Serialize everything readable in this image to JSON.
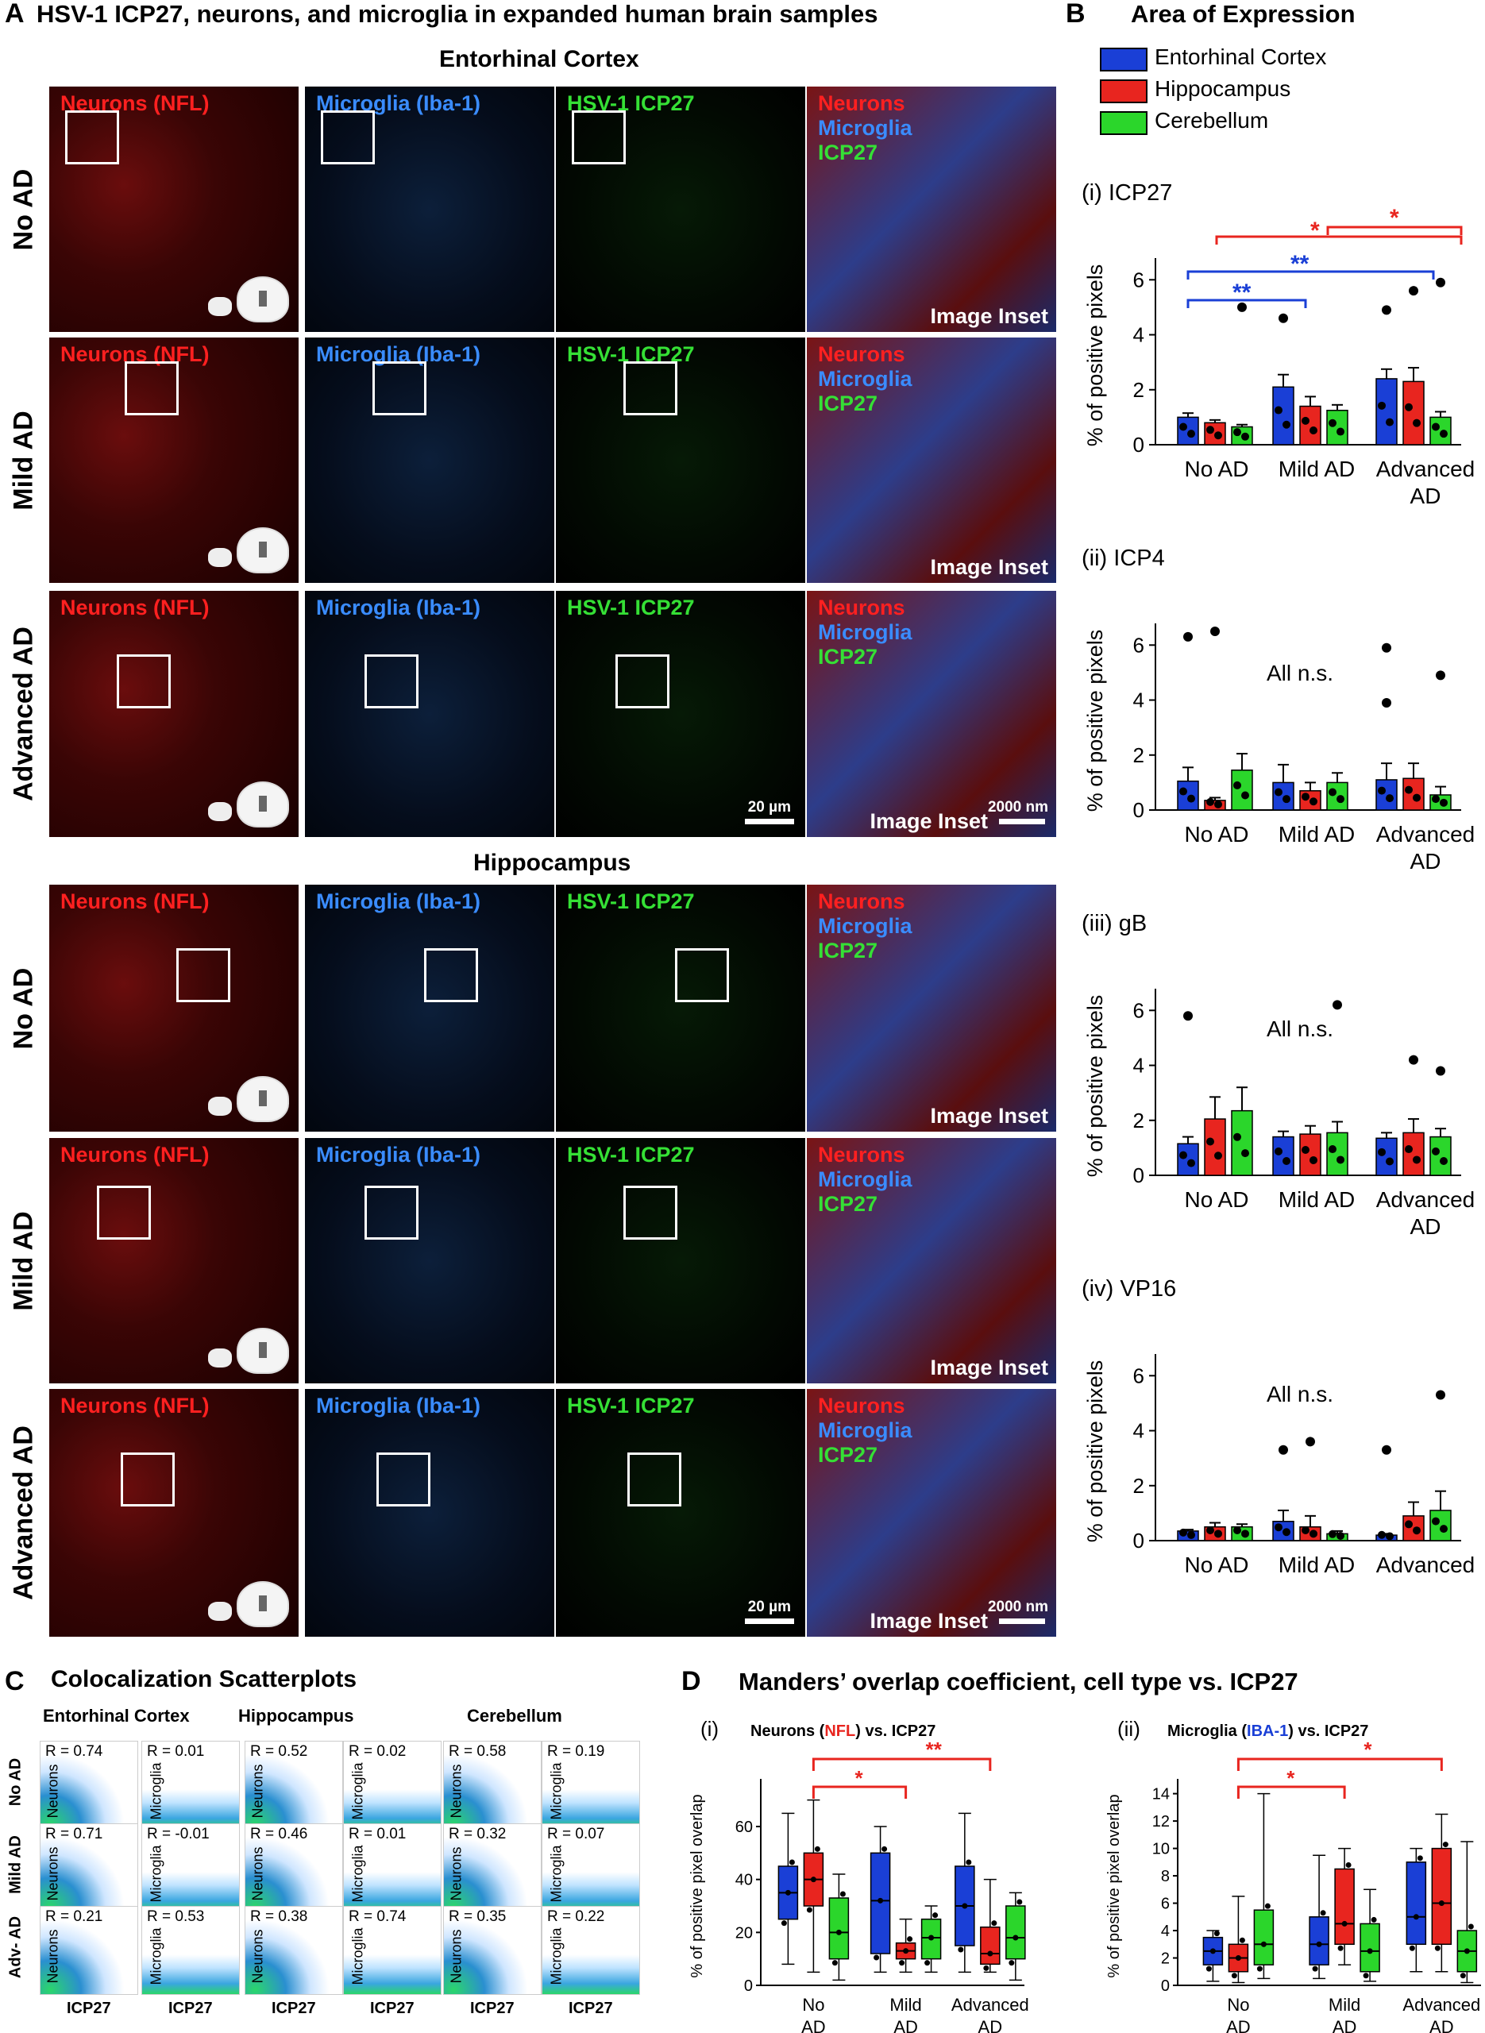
{
  "panel_A": {
    "letter": "A",
    "title": "HSV-1 ICP27, neurons, and microglia in expanded human brain samples",
    "section_ec": "Entorhinal Cortex",
    "section_hip": "Hippocampus",
    "rows": [
      "No AD",
      "Mild AD",
      "Advanced AD"
    ],
    "channels": {
      "neurons": "Neurons (NFL)",
      "microglia": "Microglia (Iba-1)",
      "icp27": "HSV-1 ICP27"
    },
    "merge_labels": [
      "Neurons",
      "Microglia",
      "ICP27"
    ],
    "inset_label": "Image Inset",
    "scale_20": "20 µm",
    "scale_2000": "2000 nm"
  },
  "panel_B": {
    "letter": "B",
    "title": "Area of Expression",
    "legend": [
      "Entorhinal Cortex",
      "Hippocampus",
      "Cerebellum"
    ],
    "colors": {
      "ec": "#1a3fd6",
      "hip": "#e8251f",
      "cb": "#2bd62b"
    },
    "ylabel": "% of positive pixels",
    "ns_label": "All n.s.",
    "groups": [
      "No AD",
      "Mild AD",
      "Advanced"
    ],
    "group3_line2": "AD",
    "stars": {
      "s1": "*",
      "s2": "*",
      "d1": "**",
      "d2": "**"
    }
  },
  "chart_data": [
    {
      "type": "bar",
      "subtitle": "(i)  ICP27",
      "categories": [
        "No AD",
        "Mild AD",
        "Advanced AD"
      ],
      "ylim": [
        0,
        6.5
      ],
      "yticks": [
        0,
        2,
        4,
        6
      ],
      "series": [
        {
          "name": "Entorhinal Cortex",
          "values": [
            1.0,
            2.1,
            2.4
          ],
          "err": [
            0.15,
            0.45,
            0.35
          ]
        },
        {
          "name": "Hippocampus",
          "values": [
            0.8,
            1.4,
            2.3
          ],
          "err": [
            0.1,
            0.35,
            0.5
          ]
        },
        {
          "name": "Cerebellum",
          "values": [
            0.65,
            1.25,
            1.0
          ],
          "err": [
            0.08,
            0.2,
            0.2
          ]
        }
      ],
      "outliers": [
        [
          4.6,
          4.9
        ],
        [
          5.6
        ],
        [
          5.0,
          5.9
        ]
      ]
    },
    {
      "type": "bar",
      "subtitle": "(ii)  ICP4",
      "categories": [
        "No AD",
        "Mild AD",
        "Advanced AD"
      ],
      "ylim": [
        0,
        6.5
      ],
      "yticks": [
        0,
        2,
        4,
        6
      ],
      "series": [
        {
          "name": "Entorhinal Cortex",
          "values": [
            1.05,
            1.0,
            1.1
          ],
          "err": [
            0.5,
            0.65,
            0.6
          ]
        },
        {
          "name": "Hippocampus",
          "values": [
            0.35,
            0.7,
            1.15
          ],
          "err": [
            0.1,
            0.3,
            0.55
          ]
        },
        {
          "name": "Cerebellum",
          "values": [
            1.45,
            1.0,
            0.55
          ],
          "err": [
            0.6,
            0.35,
            0.3
          ]
        }
      ],
      "outliers": [
        [
          3.9,
          6.3,
          5.9
        ],
        [
          6.5
        ],
        [
          4.9
        ]
      ]
    },
    {
      "type": "bar",
      "subtitle": "(iii)  gB",
      "categories": [
        "No AD",
        "Mild AD",
        "Advanced AD"
      ],
      "ylim": [
        0,
        6.5
      ],
      "yticks": [
        0,
        2,
        4,
        6
      ],
      "series": [
        {
          "name": "Entorhinal Cortex",
          "values": [
            1.15,
            1.4,
            1.35
          ],
          "err": [
            0.25,
            0.2,
            0.2
          ]
        },
        {
          "name": "Hippocampus",
          "values": [
            2.05,
            1.5,
            1.55
          ],
          "err": [
            0.8,
            0.3,
            0.5
          ]
        },
        {
          "name": "Cerebellum",
          "values": [
            2.35,
            1.55,
            1.4
          ],
          "err": [
            0.85,
            0.4,
            0.3
          ]
        }
      ],
      "outliers": [
        [
          5.8
        ],
        [
          4.2
        ],
        [
          6.2,
          3.8
        ]
      ]
    },
    {
      "type": "bar",
      "subtitle": "(iv)  VP16",
      "categories": [
        "No AD",
        "Mild AD",
        "Advanced AD"
      ],
      "ylim": [
        0,
        6.5
      ],
      "yticks": [
        0,
        2,
        4,
        6
      ],
      "series": [
        {
          "name": "Entorhinal Cortex",
          "values": [
            0.35,
            0.7,
            0.2
          ],
          "err": [
            0.05,
            0.4,
            0.05
          ]
        },
        {
          "name": "Hippocampus",
          "values": [
            0.5,
            0.5,
            0.9
          ],
          "err": [
            0.15,
            0.4,
            0.5
          ]
        },
        {
          "name": "Cerebellum",
          "values": [
            0.5,
            0.25,
            1.1
          ],
          "err": [
            0.1,
            0.1,
            0.7
          ]
        }
      ],
      "outliers": [
        [
          3.3,
          3.3
        ],
        [
          3.6
        ],
        [
          5.3
        ]
      ]
    },
    {
      "type": "box",
      "subtitle": "(i)",
      "title_parts": [
        "Neurons (",
        "NFL",
        ") vs. ICP27"
      ],
      "ylabel": "% of positive pixel overlap",
      "ylim": [
        0,
        75
      ],
      "yticks": [
        0,
        20,
        40,
        60
      ],
      "categories": [
        "No AD",
        "Mild AD",
        "Advanced AD"
      ],
      "boxes": [
        {
          "group": "No AD",
          "series": "Entorhinal Cortex",
          "min": 8,
          "q1": 25,
          "med": 35,
          "q3": 45,
          "max": 65
        },
        {
          "group": "No AD",
          "series": "Hippocampus",
          "min": 5,
          "q1": 30,
          "med": 40,
          "q3": 50,
          "max": 70
        },
        {
          "group": "No AD",
          "series": "Cerebellum",
          "min": 2,
          "q1": 10,
          "med": 20,
          "q3": 33,
          "max": 42
        },
        {
          "group": "Mild AD",
          "series": "Entorhinal Cortex",
          "min": 5,
          "q1": 12,
          "med": 32,
          "q3": 50,
          "max": 60
        },
        {
          "group": "Mild AD",
          "series": "Hippocampus",
          "min": 5,
          "q1": 10,
          "med": 13,
          "q3": 16,
          "max": 25
        },
        {
          "group": "Mild AD",
          "series": "Cerebellum",
          "min": 5,
          "q1": 10,
          "med": 18,
          "q3": 25,
          "max": 30
        },
        {
          "group": "Advanced AD",
          "series": "Entorhinal Cortex",
          "min": 5,
          "q1": 15,
          "med": 30,
          "q3": 45,
          "max": 65
        },
        {
          "group": "Advanced AD",
          "series": "Hippocampus",
          "min": 5,
          "q1": 8,
          "med": 12,
          "q3": 22,
          "max": 40
        },
        {
          "group": "Advanced AD",
          "series": "Cerebellum",
          "min": 2,
          "q1": 10,
          "med": 18,
          "q3": 30,
          "max": 35
        }
      ]
    },
    {
      "type": "box",
      "subtitle": "(ii)",
      "title_parts": [
        "Microglia (",
        "IBA-1",
        ") vs. ICP27"
      ],
      "ylabel": "% of positive pixel overlap",
      "ylim": [
        0,
        14.5
      ],
      "yticks": [
        0,
        2,
        4,
        6,
        8,
        10,
        12,
        14
      ],
      "categories": [
        "No AD",
        "Mild AD",
        "Advanced AD"
      ],
      "boxes": [
        {
          "group": "No AD",
          "series": "Entorhinal Cortex",
          "min": 0.3,
          "q1": 1.5,
          "med": 2.5,
          "q3": 3.5,
          "max": 4
        },
        {
          "group": "No AD",
          "series": "Hippocampus",
          "min": 0.2,
          "q1": 1.0,
          "med": 2.0,
          "q3": 3.0,
          "max": 6.5
        },
        {
          "group": "No AD",
          "series": "Cerebellum",
          "min": 0.5,
          "q1": 1.5,
          "med": 3.0,
          "q3": 5.5,
          "max": 14
        },
        {
          "group": "Mild AD",
          "series": "Entorhinal Cortex",
          "min": 0.5,
          "q1": 1.5,
          "med": 3.0,
          "q3": 5.0,
          "max": 9.5
        },
        {
          "group": "Mild AD",
          "series": "Hippocampus",
          "min": 1.5,
          "q1": 3.0,
          "med": 4.5,
          "q3": 8.5,
          "max": 10
        },
        {
          "group": "Mild AD",
          "series": "Cerebellum",
          "min": 0.3,
          "q1": 1.0,
          "med": 2.5,
          "q3": 4.5,
          "max": 7
        },
        {
          "group": "Advanced AD",
          "series": "Entorhinal Cortex",
          "min": 1.0,
          "q1": 3.0,
          "med": 5.0,
          "q3": 9.0,
          "max": 10
        },
        {
          "group": "Advanced AD",
          "series": "Hippocampus",
          "min": 1.0,
          "q1": 3.0,
          "med": 6.0,
          "q3": 10,
          "max": 12.5
        },
        {
          "group": "Advanced AD",
          "series": "Cerebellum",
          "min": 0.2,
          "q1": 1.0,
          "med": 2.5,
          "q3": 4.0,
          "max": 10.5
        }
      ]
    }
  ],
  "panel_C": {
    "letter": "C",
    "title": "Colocalization Scatterplots",
    "columns": [
      "Entorhinal Cortex",
      "Hippocampus",
      "Cerebellum"
    ],
    "rows": [
      "No AD",
      "Mild AD",
      "Adv- AD"
    ],
    "ylabels": [
      "Neurons",
      "Microglia"
    ],
    "xlabel": "ICP27",
    "r_values": [
      [
        "R = 0.74",
        "R = 0.01",
        "R = 0.52",
        "R = 0.02",
        "R = 0.58",
        "R = 0.19"
      ],
      [
        "R = 0.71",
        "R = -0.01",
        "R = 0.46",
        "R = 0.01",
        "R = 0.32",
        "R = 0.07"
      ],
      [
        "R = 0.21",
        "R = 0.53",
        "R = 0.38",
        "R = 0.74",
        "R = 0.35",
        "R = 0.22"
      ]
    ]
  },
  "panel_D": {
    "letter": "D",
    "title": "Manders’ overlap coefficient, cell type vs. ICP27",
    "xlabels": [
      [
        "No",
        "AD"
      ],
      [
        "Mild",
        "AD"
      ],
      [
        "Advanced",
        "AD"
      ]
    ],
    "stars": [
      "*",
      "**",
      "*",
      "*"
    ]
  }
}
